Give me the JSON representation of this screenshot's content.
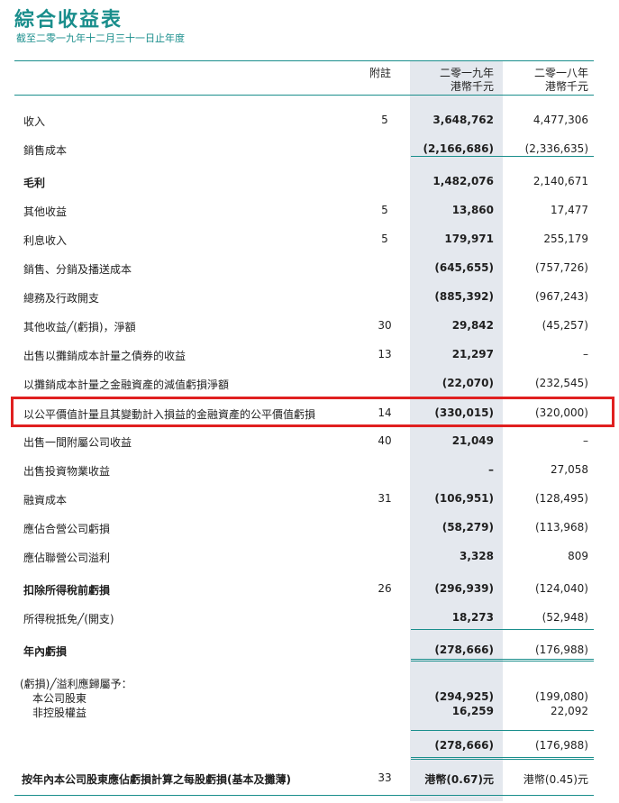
{
  "title": "綜合收益表",
  "subtitle": "截至二零一九年十二月三十一日止年度",
  "header": {
    "note": "附註",
    "col1_line1": "二零一九年",
    "col1_line2": "港幣千元",
    "col2_line1": "二零一八年",
    "col2_line2": "港幣千元"
  },
  "rows": [
    {
      "label": "收入",
      "note": "5",
      "v2019": "3,648,762",
      "v2018": "4,477,306"
    },
    {
      "label": "銷售成本",
      "note": "",
      "v2019": "(2,166,686)",
      "v2018": "(2,336,635)"
    },
    {
      "label": "毛利",
      "note": "",
      "v2019": "1,482,076",
      "v2018": "2,140,671"
    },
    {
      "label": "其他收益",
      "note": "5",
      "v2019": "13,860",
      "v2018": "17,477"
    },
    {
      "label": "利息收入",
      "note": "5",
      "v2019": "179,971",
      "v2018": "255,179"
    },
    {
      "label": "銷售、分銷及播送成本",
      "note": "",
      "v2019": "(645,655)",
      "v2018": "(757,726)"
    },
    {
      "label": "總務及行政開支",
      "note": "",
      "v2019": "(885,392)",
      "v2018": "(967,243)"
    },
    {
      "label": "其他收益╱(虧損)，淨額",
      "note": "30",
      "v2019": "29,842",
      "v2018": "(45,257)"
    },
    {
      "label": "出售以攤銷成本計量之債券的收益",
      "note": "13",
      "v2019": "21,297",
      "v2018": "–"
    },
    {
      "label": "以攤銷成本計量之金融資產的減值虧損淨額",
      "note": "",
      "v2019": "(22,070)",
      "v2018": "(232,545)"
    },
    {
      "label": "以公平價值計量且其變動計入損益的金融資產的公平價值虧損",
      "note": "14",
      "v2019": "(330,015)",
      "v2018": "(320,000)"
    },
    {
      "label": "出售一間附屬公司收益",
      "note": "40",
      "v2019": "21,049",
      "v2018": "–"
    },
    {
      "label": "出售投資物業收益",
      "note": "",
      "v2019": "–",
      "v2018": "27,058"
    },
    {
      "label": "融資成本",
      "note": "31",
      "v2019": "(106,951)",
      "v2018": "(128,495)"
    },
    {
      "label": "應佔合營公司虧損",
      "note": "",
      "v2019": "(58,279)",
      "v2018": "(113,968)"
    },
    {
      "label": "應佔聯營公司溢利",
      "note": "",
      "v2019": "3,328",
      "v2018": "809"
    },
    {
      "label": "扣除所得稅前虧損",
      "note": "26",
      "v2019": "(296,939)",
      "v2018": "(124,040)"
    },
    {
      "label": "所得稅抵免╱(開支)",
      "note": "",
      "v2019": "18,273",
      "v2018": "(52,948)"
    },
    {
      "label": "年內虧損",
      "note": "",
      "v2019": "(278,666)",
      "v2018": "(176,988)"
    }
  ],
  "attributable": {
    "heading": "(虧損)╱溢利應歸屬予：",
    "items": [
      {
        "label": "本公司股東",
        "v2019": "(294,925)",
        "v2018": "(199,080)"
      },
      {
        "label": "非控股權益",
        "v2019": "16,259",
        "v2018": "22,092"
      }
    ],
    "total_v2019": "(278,666)",
    "total_v2018": "(176,988)"
  },
  "eps": {
    "label": "按年內本公司股東應佔虧損計算之每股虧損(基本及攤薄)",
    "note": "33",
    "v2019": "港幣(0.67)元",
    "v2018": "港幣(0.45)元"
  },
  "colors": {
    "accent": "#1a8e8c",
    "highlight": "#e02020",
    "shade": "#e4e8ee"
  }
}
